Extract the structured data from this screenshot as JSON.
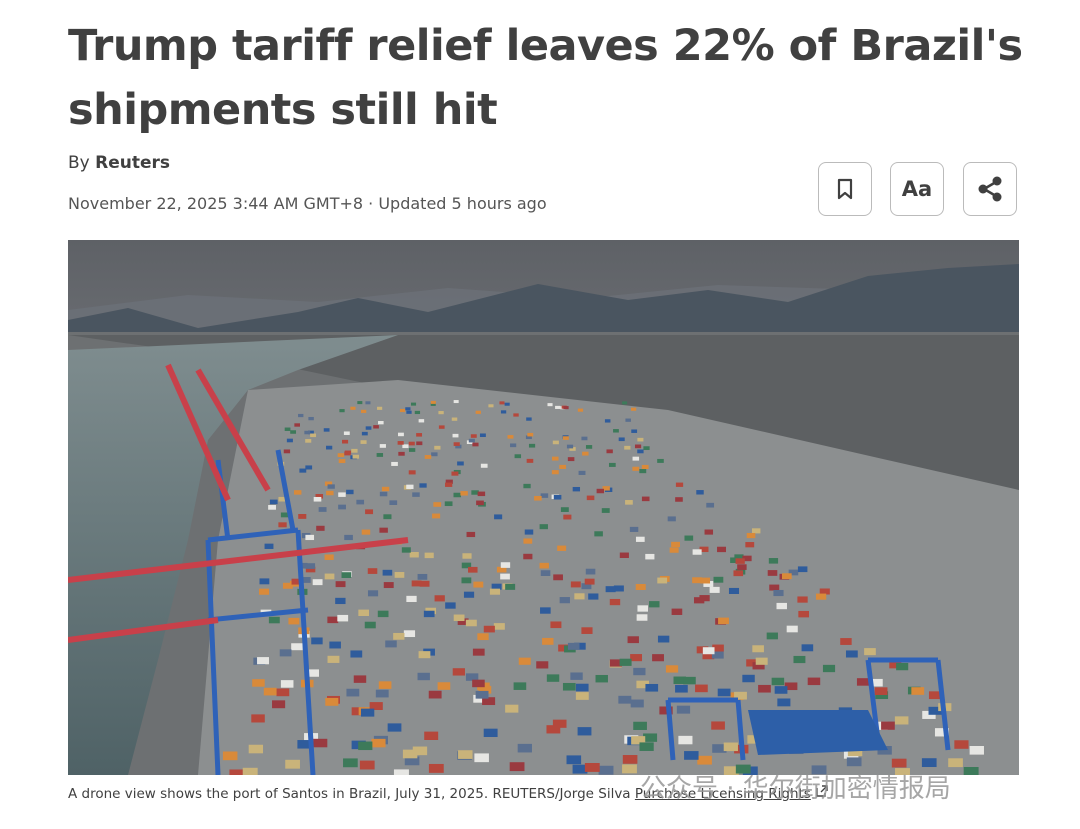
{
  "article": {
    "title": "Trump tariff relief leaves 22% of Brazil's shipments still hit",
    "byline_prefix": "By",
    "author": "Reuters",
    "date": "November 22, 2025 3:44 AM GMT+8",
    "updated": "· Updated 5 hours ago",
    "font_button": "Aa",
    "caption": "A drone view shows the port of Santos in Brazil, July 31, 2025. REUTERS/Jorge Silva",
    "licensing": "Purchase Licensing Rights",
    "watermark": "公众号 · 华尔街加密情报局"
  }
}
